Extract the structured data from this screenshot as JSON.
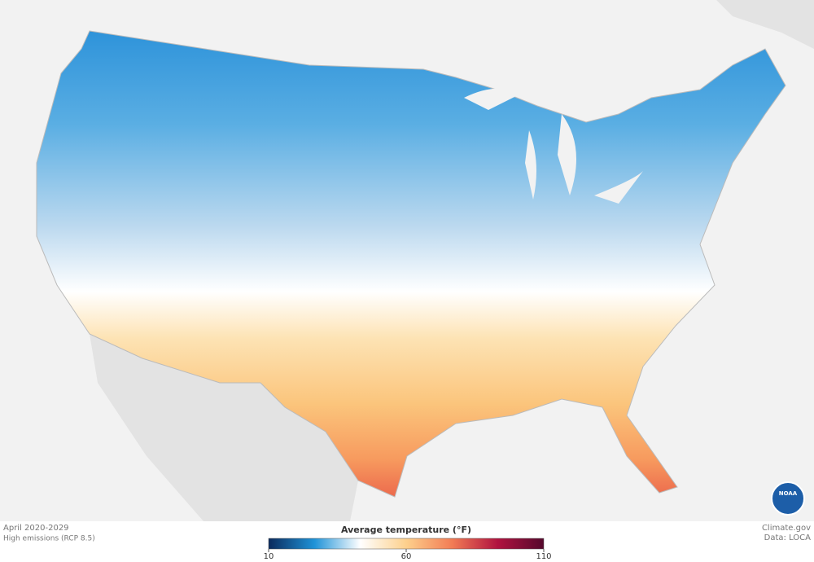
{
  "caption": {
    "period": "April 2020-2029",
    "scenario": "High emissions (RCP 8.5)"
  },
  "credits": {
    "site": "Climate.gov",
    "source": "Data: LOCA",
    "logo": "NOAA"
  },
  "legend": {
    "title": "Average temperature (°F)",
    "range": [
      10,
      110
    ],
    "ticks": [
      10,
      60,
      110
    ],
    "colors": [
      "#0b2a5c",
      "#1f93d8",
      "#ffffff",
      "#fdd08c",
      "#f27c55",
      "#b0123f",
      "#55082c"
    ]
  }
}
